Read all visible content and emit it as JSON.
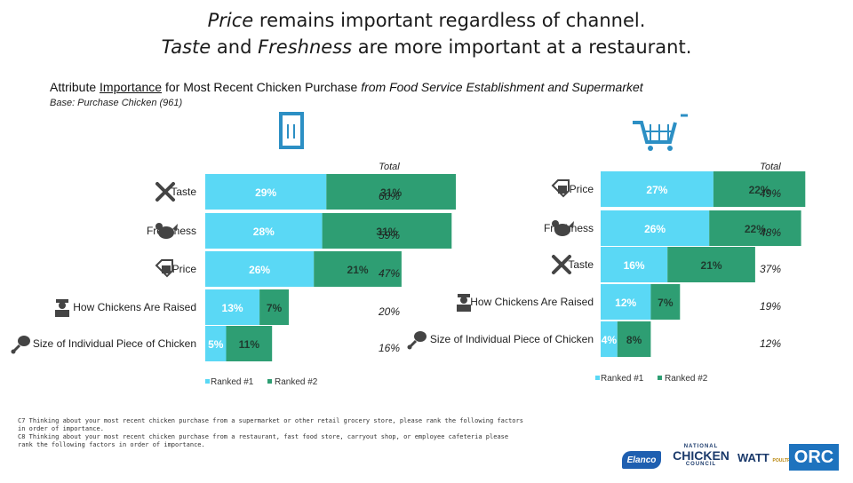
{
  "title": {
    "line1_italic": "Price",
    "line1_rest": " remains important regardless of channel.",
    "line2_italic_a": "Taste",
    "line2_mid": " and ",
    "line2_italic_b": "Freshness",
    "line2_rest": " are more important at a restaurant."
  },
  "subtitle": {
    "pre": "Attribute ",
    "underlined": "Importance",
    "mid": " for Most Recent Chicken Purchase ",
    "italic": "from Food Service Establishment and Supermarket"
  },
  "base": "Base: Purchase Chicken (961)",
  "colors": {
    "rank1": "#5ad8f5",
    "rank2": "#2e9e73",
    "label_rank1": "#ffffff",
    "label_rank2": "#1f3b2f"
  },
  "chart_data": [
    {
      "type": "bar",
      "orientation": "horizontal",
      "stacked": true,
      "channel": "Food Service Establishment",
      "icon": "restaurant-door-icon",
      "total_header": "Total",
      "categories": [
        "Taste",
        "Freshness",
        "Price",
        "How Chickens Are Raised",
        "Size of Individual Piece of Chicken"
      ],
      "category_icons": [
        "fork-knife-icon",
        "chicken-icon",
        "price-tag-icon",
        "farmer-icon",
        "drumstick-icon"
      ],
      "series": [
        {
          "name": "Ranked #1",
          "values": [
            29,
            28,
            26,
            13,
            5
          ],
          "labels": [
            "29%",
            "28%",
            "26%",
            "13%",
            "5%"
          ]
        },
        {
          "name": "Ranked #2",
          "values": [
            31,
            31,
            21,
            7,
            11
          ],
          "labels": [
            "31%",
            "31%",
            "21%",
            "7%",
            "11%"
          ]
        }
      ],
      "totals": [
        "60%",
        "59%",
        "47%",
        "20%",
        "16%"
      ],
      "legend": [
        "Ranked #1",
        "Ranked #2"
      ]
    },
    {
      "type": "bar",
      "orientation": "horizontal",
      "stacked": true,
      "channel": "Supermarket",
      "icon": "shopping-cart-icon",
      "total_header": "Total",
      "categories": [
        "Price",
        "Freshness",
        "Taste",
        "How Chickens Are Raised",
        "Size of Individual Piece of Chicken"
      ],
      "category_icons": [
        "price-tag-icon",
        "chicken-icon",
        "fork-knife-icon",
        "farmer-icon",
        "drumstick-icon"
      ],
      "series": [
        {
          "name": "Ranked #1",
          "values": [
            27,
            26,
            16,
            12,
            4
          ],
          "labels": [
            "27%",
            "26%",
            "16%",
            "12%",
            "4%"
          ]
        },
        {
          "name": "Ranked #2",
          "values": [
            22,
            22,
            21,
            7,
            8
          ],
          "labels": [
            "22%",
            "22%",
            "21%",
            "7%",
            "8%"
          ]
        }
      ],
      "totals": [
        "49%",
        "48%",
        "37%",
        "19%",
        "12%"
      ],
      "legend": [
        "Ranked #1",
        "Ranked #2"
      ]
    }
  ],
  "footnote": {
    "line1": "C7  Thinking about your most recent chicken purchase from a supermarket or other retail grocery store, please rank the following factors",
    "line2": "in order of importance.",
    "line3": "C8  Thinking about your most recent chicken purchase from a restaurant, fast food store, carryout shop, or employee cafeteria please",
    "line4": "rank the following factors in order of importance."
  },
  "logos": {
    "elanco": "Elanco",
    "ncc_top": "NATIONAL",
    "ncc_main": "CHICKEN",
    "ncc_bottom": "COUNCIL",
    "watt": "WATT",
    "watt_sub": "POULTRY MEDIA",
    "orc": "ORC"
  }
}
